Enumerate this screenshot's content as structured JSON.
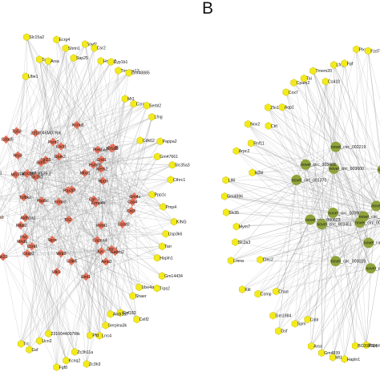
{
  "panel_b_label": "B",
  "colors": {
    "gene_node": "#f3ea1c",
    "gene_node_stroke": "#b8ad00",
    "mirna_node": "#e8735a",
    "circrna_node": "#8fa33a",
    "edge": "#9a9a9a"
  },
  "panel_a": {
    "gene_nodes": [
      "Ube1",
      "Slc15a2",
      "Spm",
      "Arsa",
      "Ecrg4",
      "Shrin1",
      "Sap25",
      "Vwf2",
      "Csr2",
      "Hmcn2",
      "Cyp1b1",
      "Tmprss13",
      "Gm48885",
      "Mt1",
      "Ccnj",
      "Serbl2",
      "Lfng",
      "Cdk62",
      "Pappa2",
      "Gm47661",
      "Slc35a3",
      "Cthrc1",
      "Ppp1c",
      "Pmp4",
      "KING",
      "Usp3k6",
      "Tarr",
      "Hapln1",
      "Gm14434",
      "Trps2",
      "Ube4a",
      "Shaer",
      "Celf2",
      "Rsf182",
      "Akdr1a7",
      "Serpina3k",
      "Lrrc4",
      "Pfd",
      "Zc3h3",
      "Zc3h11a",
      "Kcnq2",
      "Fgf8",
      "2310044007Rik",
      "Ucn2",
      "Gsf",
      "Trc"
    ],
    "mirna_nodes": [
      "Aldh1a1",
      "Rlx3",
      "Plxt",
      "Tp53",
      "Txf8k2",
      "Ribd2",
      "Mnd1",
      "Cnsp2",
      "MSTRG.7525.2",
      "Mefs2",
      "Plekha3",
      "Nrp3",
      "Ankh4",
      "Npg3",
      "Nrl23",
      "MSTRG.2473.2",
      "Ccnl1",
      "Kcnu8",
      "Dmd1",
      "Prmt1",
      "Tfr2",
      "Calc3",
      "Slc2k2",
      "Akap9",
      "Amd2",
      "Rjx23",
      "Lnp5",
      "Gpm2",
      "Frmd4b",
      "Ermn3",
      "Zcchc7",
      "Pcnt2",
      "Gdf5",
      "Mbd1",
      "Ak23",
      "Cacna4",
      "Cas4",
      "Cdad5",
      "Cnt3",
      "Eml1",
      "Arap1",
      "Sgce",
      "Cdkl5",
      "Ccnd2",
      "2310046M07Rik",
      "Ppp5c",
      "Gabrb2",
      "Jun",
      "Pax3",
      "Nr5a2",
      "Gm4x",
      "Cxcl1",
      "Ulk1",
      "Psmd5",
      "Wdr3",
      "Crid1"
    ]
  },
  "panel_b": {
    "gene_nodes": [
      "Pappa",
      "BC008524",
      "Hapln1",
      "Mt1",
      "Gm4939",
      "Arsa",
      "Cobl",
      "Spm",
      "Gsf",
      "Gm1984",
      "Chad",
      "Comp",
      "Kitl",
      "Clec2",
      "Lmna",
      "Slc2a3",
      "Mym7",
      "Slc35",
      "Gm4996",
      "Lif4",
      "H2bl",
      "Arpc2",
      "Rnf11",
      "Nox2",
      "Ctrl",
      "Zfo1",
      "Aqp1",
      "Cox7",
      "Cpam2",
      "Tai",
      "Tmem20",
      "Cs410",
      "Lfng",
      "Fgf",
      "Plxn",
      "Fzd7"
    ],
    "circrna_nodes": [
      "novel_circ_001389",
      "novel_circ_001370",
      "novel_circ_003501",
      "novel_circ_000602",
      "novel_circ_000019",
      "novel_circ_000895",
      "novel_circ_000616",
      "novel_circ_001922",
      "novel_circ_003600",
      "novel_circ_000623",
      "novel_circ_003461",
      "novel_circ_002276",
      "novel_circ_003463",
      "novel_circ_000861",
      "novel_circ_000741",
      "novel_circ_002219"
    ]
  }
}
